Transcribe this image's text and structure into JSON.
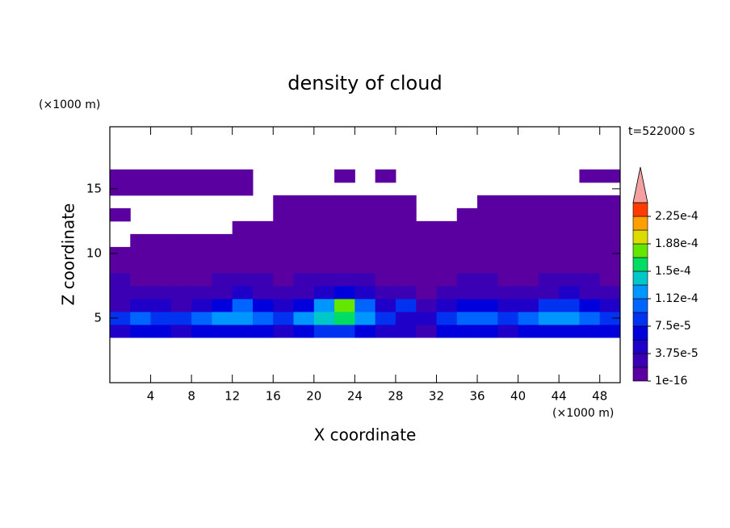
{
  "chart_data": {
    "type": "contour",
    "title": "density of cloud",
    "annotation": "t=522000 s",
    "x_label": "X coordinate",
    "y_label": "Z coordinate",
    "x_unit": "(×1000 m)",
    "y_unit": "(×1000 m)",
    "xlim": [
      0,
      50
    ],
    "ylim": [
      0,
      19.8
    ],
    "xticks": [
      4,
      8,
      12,
      16,
      20,
      24,
      28,
      32,
      36,
      40,
      44,
      48
    ],
    "yticks": [
      5,
      10,
      15
    ],
    "x": [
      1,
      3,
      5,
      7,
      9,
      11,
      13,
      15,
      17,
      19,
      21,
      23,
      25,
      27,
      29,
      31,
      33,
      35,
      37,
      39,
      41,
      43,
      45,
      47,
      49
    ],
    "z": [
      4,
      5,
      6,
      7,
      8,
      9,
      10,
      11,
      12,
      13,
      14,
      15,
      16
    ],
    "values": [
      [
        5e-05,
        6e-05,
        6e-05,
        5e-05,
        6e-05,
        6e-05,
        7e-05,
        6e-05,
        5e-05,
        7e-05,
        8e-05,
        8e-05,
        7e-05,
        5e-05,
        4e-05,
        3e-05,
        6e-05,
        7e-05,
        6e-05,
        5e-05,
        6e-05,
        7e-05,
        6e-05,
        7e-05,
        6e-05
      ],
      [
        8e-05,
        0.0001,
        9e-05,
        8e-05,
        0.0001,
        0.00012,
        0.00012,
        0.0001,
        9e-05,
        0.00012,
        0.00014,
        0.00015,
        0.00012,
        8e-05,
        5e-05,
        4e-05,
        9e-05,
        0.00011,
        0.0001,
        8e-05,
        0.0001,
        0.00012,
        0.00013,
        0.00011,
        9e-05
      ],
      [
        3e-05,
        4e-05,
        4e-05,
        3e-05,
        5e-05,
        7e-05,
        0.0001,
        6e-05,
        4e-05,
        7e-05,
        0.00012,
        0.00017,
        0.0001,
        5e-05,
        8e-05,
        3e-05,
        4e-05,
        7e-05,
        6e-05,
        4e-05,
        5e-05,
        8e-05,
        9e-05,
        6e-05,
        5e-05
      ],
      [
        2e-05,
        2e-05,
        2e-05,
        2e-05,
        3e-05,
        3e-05,
        4e-05,
        3e-05,
        2e-05,
        3e-05,
        5e-05,
        6e-05,
        4e-05,
        2e-05,
        2e-05,
        1e-05,
        2e-05,
        3e-05,
        3e-05,
        2e-05,
        2e-05,
        3e-05,
        4e-05,
        3e-05,
        2e-05
      ],
      [
        2e-05,
        1e-05,
        1e-05,
        1e-05,
        1e-05,
        2e-05,
        2e-05,
        2e-05,
        1e-05,
        2e-05,
        2e-05,
        2e-05,
        2e-05,
        1e-05,
        1e-05,
        1e-05,
        1e-05,
        2e-05,
        2e-05,
        1e-05,
        1e-05,
        2e-05,
        2e-05,
        2e-05,
        1e-05
      ],
      [
        1e-05,
        1e-16,
        1e-16,
        1e-16,
        1e-05,
        1e-05,
        1e-16,
        1e-16,
        1e-05,
        1e-05,
        1e-05,
        1e-16,
        1e-16,
        1e-05,
        1e-16,
        1e-16,
        1e-05,
        1e-05,
        1e-16,
        1e-16,
        1e-05,
        1e-05,
        1e-16,
        1e-16,
        1e-05
      ],
      [
        1e-16,
        1e-16,
        1e-16,
        1e-16,
        1e-16,
        1e-16,
        1e-16,
        1e-16,
        1e-16,
        1e-16,
        1e-16,
        1e-16,
        1e-16,
        1e-16,
        1e-16,
        1e-16,
        1e-16,
        1e-16,
        1e-16,
        1e-16,
        1e-16,
        1e-16,
        1e-16,
        1e-16,
        1e-16
      ],
      [
        null,
        1e-16,
        1e-16,
        1e-16,
        1e-16,
        1e-16,
        1e-16,
        1e-16,
        1e-16,
        1e-16,
        1e-16,
        1e-16,
        1e-16,
        1e-16,
        1e-16,
        1e-16,
        1e-16,
        1e-16,
        1e-16,
        1e-16,
        1e-16,
        1e-16,
        1e-16,
        1e-16,
        1e-16
      ],
      [
        null,
        null,
        null,
        null,
        null,
        null,
        1e-16,
        1e-16,
        1e-16,
        1e-16,
        1e-16,
        1e-16,
        1e-16,
        1e-16,
        1e-16,
        1e-16,
        1e-16,
        1e-16,
        1e-16,
        1e-16,
        1e-16,
        1e-16,
        1e-16,
        1e-16,
        1e-16
      ],
      [
        1e-16,
        null,
        null,
        null,
        null,
        null,
        null,
        null,
        1e-16,
        1e-16,
        1e-16,
        1e-16,
        1e-16,
        1e-16,
        1e-16,
        null,
        null,
        1e-16,
        1e-16,
        1e-16,
        1e-16,
        1e-16,
        1e-16,
        1e-16,
        1e-16
      ],
      [
        null,
        null,
        null,
        null,
        null,
        null,
        null,
        null,
        1e-16,
        1e-16,
        1e-16,
        1e-16,
        1e-16,
        1e-16,
        1e-16,
        null,
        null,
        null,
        1e-16,
        1e-16,
        1e-16,
        1e-16,
        1e-16,
        1e-16,
        1e-16
      ],
      [
        1e-16,
        1e-16,
        1e-16,
        1e-16,
        1e-16,
        1e-16,
        1e-16,
        null,
        null,
        null,
        null,
        null,
        null,
        null,
        null,
        null,
        null,
        null,
        null,
        null,
        null,
        null,
        null,
        null,
        null
      ],
      [
        1e-16,
        1e-16,
        1e-16,
        1e-16,
        1e-16,
        1e-16,
        1e-16,
        null,
        null,
        null,
        null,
        1e-16,
        null,
        1e-16,
        null,
        null,
        null,
        null,
        null,
        null,
        null,
        null,
        null,
        1e-16,
        1e-16
      ]
    ],
    "levels": [
      1e-16,
      1.875e-05,
      3.75e-05,
      5.625e-05,
      7.5e-05,
      9.375e-05,
      0.0001125,
      0.00013125,
      0.00015,
      0.00016875,
      0.0001875,
      0.00020625,
      0.000225,
      0.00024375
    ],
    "colors": [
      "#5a00a0",
      "#3c00b4",
      "#1e00c8",
      "#0000dc",
      "#0032f0",
      "#0064ff",
      "#0096ff",
      "#00c8c8",
      "#00dc64",
      "#64e600",
      "#dcdc00",
      "#ffa000",
      "#ff3c00"
    ],
    "extend_color": "#f4a0a0",
    "colorbar_ticks": [
      {
        "value": 1e-16,
        "label": "1e-16"
      },
      {
        "value": 3.75e-05,
        "label": "3.75e-5"
      },
      {
        "value": 7.5e-05,
        "label": "7.5e-5"
      },
      {
        "value": 0.0001125,
        "label": "1.12e-4"
      },
      {
        "value": 0.00015,
        "label": "1.5e-4"
      },
      {
        "value": 0.0001875,
        "label": "1.88e-4"
      },
      {
        "value": 0.000225,
        "label": "2.25e-4"
      }
    ]
  }
}
